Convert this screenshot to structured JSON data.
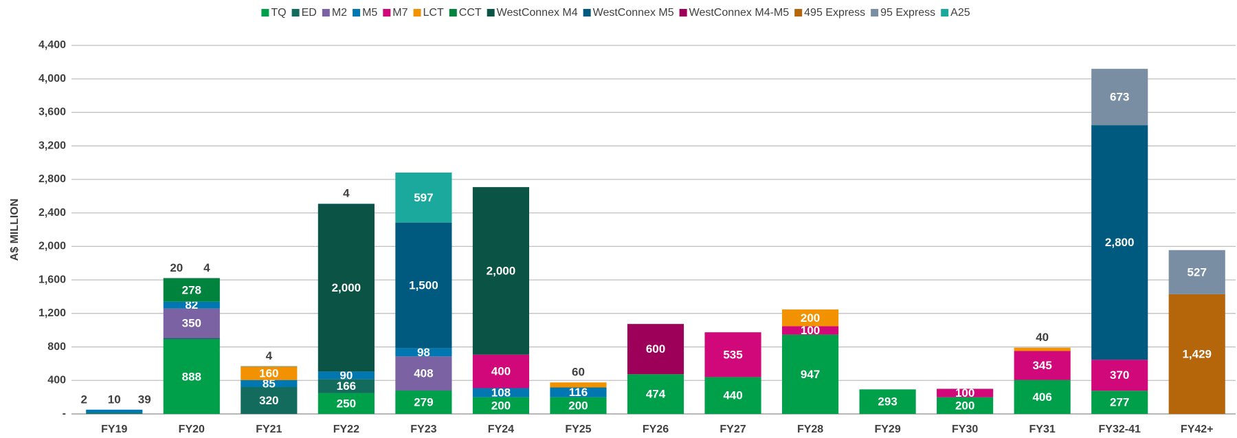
{
  "chart_data": {
    "type": "bar",
    "stacked": true,
    "y_label": "A$ MILLION",
    "categories": [
      "FY19",
      "FY20",
      "FY21",
      "FY22",
      "FY23",
      "FY24",
      "FY25",
      "FY26",
      "FY27",
      "FY28",
      "FY29",
      "FY30",
      "FY31",
      "FY32-41",
      "FY42+"
    ],
    "series": [
      {
        "name": "TQ",
        "color": "#00a04b",
        "values": [
          2,
          888,
          null,
          250,
          279,
          200,
          200,
          474,
          440,
          947,
          293,
          200,
          406,
          277,
          null
        ]
      },
      {
        "name": "ED",
        "color": "#136b5e",
        "values": [
          10,
          20,
          320,
          166,
          null,
          null,
          null,
          null,
          null,
          null,
          null,
          null,
          null,
          null,
          null
        ]
      },
      {
        "name": "M2",
        "color": "#7b62a3",
        "values": [
          null,
          350,
          null,
          null,
          408,
          null,
          null,
          null,
          null,
          null,
          null,
          null,
          null,
          null,
          null
        ]
      },
      {
        "name": "M5",
        "color": "#0077b0",
        "values": [
          39,
          82,
          85,
          90,
          98,
          108,
          116,
          null,
          null,
          null,
          null,
          null,
          null,
          null,
          null
        ]
      },
      {
        "name": "M7",
        "color": "#d0087a",
        "values": [
          null,
          null,
          null,
          null,
          null,
          400,
          null,
          null,
          535,
          100,
          null,
          100,
          345,
          370,
          null
        ]
      },
      {
        "name": "LCT",
        "color": "#f39200",
        "values": [
          null,
          null,
          160,
          null,
          null,
          null,
          60,
          null,
          null,
          200,
          null,
          null,
          40,
          null,
          null
        ]
      },
      {
        "name": "CCT",
        "color": "#00843d",
        "values": [
          null,
          278,
          null,
          null,
          null,
          null,
          null,
          null,
          null,
          null,
          null,
          null,
          null,
          null,
          null
        ]
      },
      {
        "name": "WestConnex M4",
        "color": "#0b5345",
        "values": [
          null,
          4,
          4,
          2000,
          null,
          2000,
          null,
          null,
          null,
          null,
          null,
          null,
          null,
          null,
          null
        ],
        "value_labels": [
          null,
          "4",
          "4",
          "2,000",
          null,
          "2,000",
          null,
          null,
          null,
          null,
          null,
          null,
          null,
          null,
          null
        ]
      },
      {
        "name": "WestConnex M5",
        "color": "#005a80",
        "values": [
          null,
          null,
          null,
          4,
          1500,
          null,
          null,
          null,
          null,
          null,
          null,
          null,
          null,
          2800,
          null
        ],
        "value_labels": [
          null,
          null,
          null,
          "4",
          "1,500",
          null,
          null,
          null,
          null,
          null,
          null,
          null,
          null,
          "2,800",
          null
        ]
      },
      {
        "name": "WestConnex M4-M5",
        "color": "#9c0058",
        "values": [
          null,
          null,
          null,
          null,
          null,
          null,
          null,
          600,
          null,
          null,
          null,
          null,
          null,
          null,
          null
        ]
      },
      {
        "name": "495 Express",
        "color": "#b5660a",
        "values": [
          null,
          null,
          null,
          null,
          null,
          null,
          null,
          null,
          null,
          null,
          null,
          null,
          null,
          null,
          1429
        ],
        "value_labels": [
          null,
          null,
          null,
          null,
          null,
          null,
          null,
          null,
          null,
          null,
          null,
          null,
          null,
          null,
          "1,429"
        ]
      },
      {
        "name": "95 Express",
        "color": "#7a8ea3",
        "values": [
          null,
          null,
          null,
          null,
          null,
          null,
          null,
          null,
          null,
          null,
          null,
          null,
          null,
          673,
          527
        ]
      },
      {
        "name": "A25",
        "color": "#1aa99c",
        "values": [
          null,
          null,
          null,
          null,
          597,
          null,
          null,
          null,
          null,
          null,
          null,
          null,
          null,
          null,
          null
        ]
      }
    ],
    "ylim": [
      0,
      4400
    ],
    "yticks": [
      {
        "value": 0,
        "label": "-"
      },
      400,
      800,
      {
        "value": 1200,
        "label": "1,200"
      },
      {
        "value": 1600,
        "label": "1,600"
      },
      {
        "value": 2000,
        "label": "2,000"
      },
      {
        "value": 2400,
        "label": "2,400"
      },
      {
        "value": 2800,
        "label": "2,800"
      },
      {
        "value": 3200,
        "label": "3,200"
      },
      {
        "value": 3600,
        "label": "3,600"
      },
      {
        "value": 4000,
        "label": "4,000"
      },
      {
        "value": 4400,
        "label": "4,400"
      }
    ],
    "grid": true,
    "legend": "top"
  }
}
